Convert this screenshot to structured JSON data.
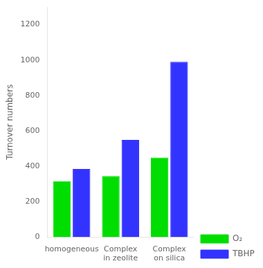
{
  "chart_data": {
    "type": "bar",
    "categories": [
      "homogeneous",
      "Complex\nin zeolite",
      "Complex\non silica"
    ],
    "series": [
      {
        "name": "O₂",
        "color": "#00dd00",
        "values": [
          315,
          345,
          450
        ]
      },
      {
        "name": "TBHP",
        "color": "#3333ff",
        "values": [
          385,
          550,
          990
        ]
      }
    ],
    "ylabel": "Turnover numbers",
    "ylim": [
      0,
      1300
    ],
    "yticks": [
      0,
      200,
      400,
      600,
      800,
      1000,
      1200
    ],
    "grid": false,
    "legend": "lower right"
  }
}
